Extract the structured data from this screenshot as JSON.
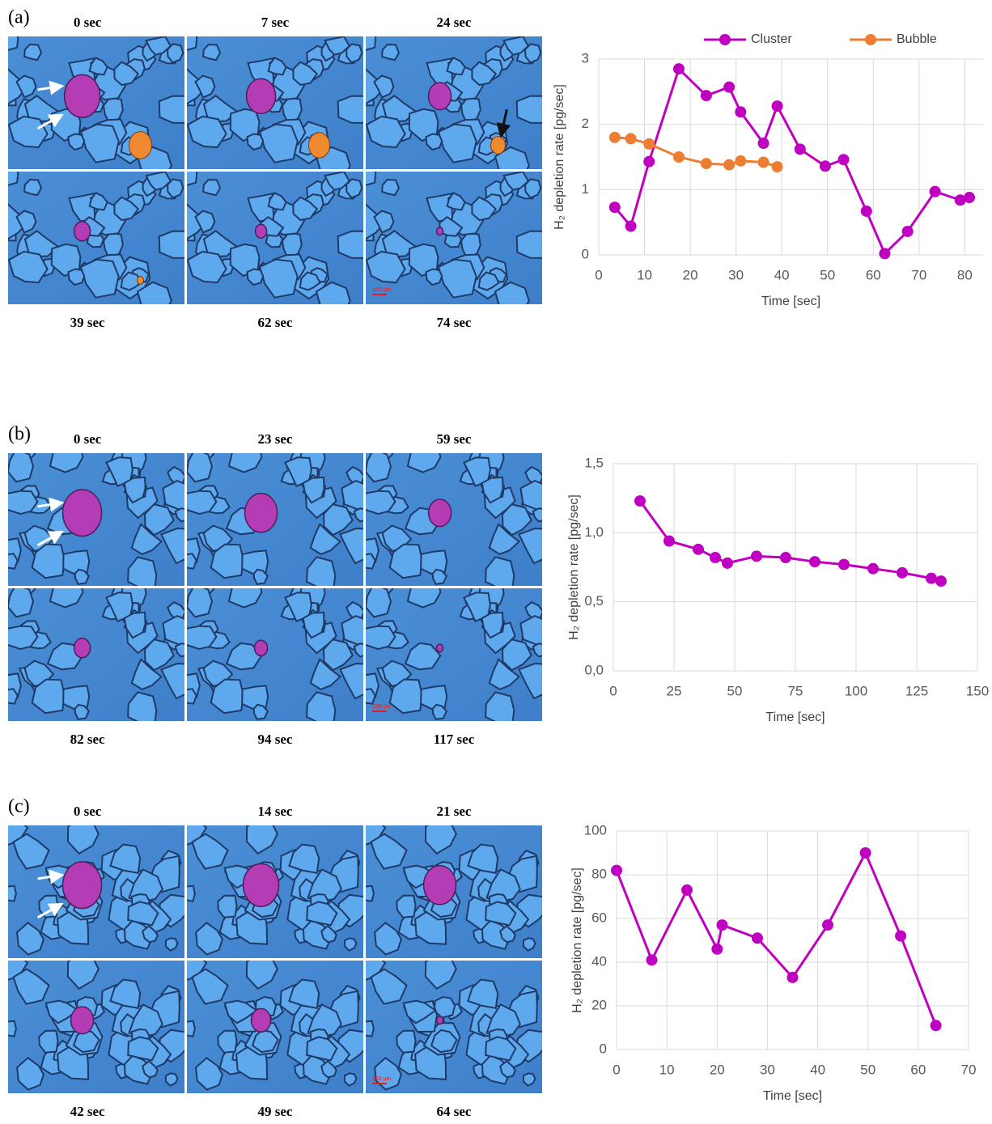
{
  "panels": [
    {
      "label": "(a)",
      "times": [
        "0 sec",
        "7 sec",
        "24 sec",
        "39 sec",
        "62 sec",
        "74 sec"
      ],
      "scale_bar": "100 µm"
    },
    {
      "label": "(b)",
      "times": [
        "0 sec",
        "23 sec",
        "59 sec",
        "82 sec",
        "94 sec",
        "117 sec"
      ],
      "scale_bar": "100 µm"
    },
    {
      "label": "(c)",
      "times": [
        "0 sec",
        "14 sec",
        "21 sec",
        "42 sec",
        "49 sec",
        "64 sec"
      ],
      "scale_bar": "100 µm"
    }
  ],
  "chart_data": [
    {
      "type": "line",
      "x_label": "Time [sec]",
      "y_label": "H₂ depletion rate [pg/sec]",
      "xlim": [
        0,
        84
      ],
      "xticks": [
        0,
        10,
        20,
        30,
        40,
        50,
        60,
        70,
        80
      ],
      "ylim": [
        0,
        3
      ],
      "yticks": [
        0,
        1,
        2,
        3
      ],
      "grid": true,
      "legend": "top",
      "series": [
        {
          "name": "Cluster",
          "color": "#c000c0",
          "x": [
            3.5,
            7,
            11,
            17.5,
            23.5,
            28.5,
            31,
            36,
            39,
            44,
            49.5,
            53.5,
            58.5,
            62.5,
            67.5,
            73.5,
            79,
            81
          ],
          "values": [
            0.73,
            0.44,
            1.43,
            2.85,
            2.44,
            2.57,
            2.19,
            1.71,
            2.28,
            1.62,
            1.36,
            1.46,
            0.67,
            0.02,
            0.36,
            0.97,
            0.84,
            0.88
          ]
        },
        {
          "name": "Bubble",
          "color": "#ed7d31",
          "x": [
            3.5,
            7,
            11,
            17.5,
            23.5,
            28.5,
            31,
            36,
            39
          ],
          "values": [
            1.8,
            1.78,
            1.7,
            1.5,
            1.4,
            1.38,
            1.44,
            1.42,
            1.35
          ]
        }
      ]
    },
    {
      "type": "line",
      "x_label": "Time [sec]",
      "y_label": "H₂ depletion rate [pg/sec]",
      "xlim": [
        0,
        150
      ],
      "xticks": [
        0,
        25,
        50,
        75,
        100,
        125,
        150
      ],
      "ylim": [
        0,
        1.5
      ],
      "yticks": [
        {
          "value": 0,
          "label": "0,0"
        },
        {
          "value": 0.5,
          "label": "0,5"
        },
        {
          "value": 1,
          "label": "1,0"
        },
        {
          "value": 1.5,
          "label": "1,5"
        }
      ],
      "grid": true,
      "series": [
        {
          "color": "#c000c0",
          "x": [
            11,
            23,
            35,
            42,
            47,
            59,
            71,
            83,
            95,
            107,
            119,
            131,
            135
          ],
          "values": [
            1.23,
            0.94,
            0.88,
            0.82,
            0.78,
            0.83,
            0.82,
            0.79,
            0.77,
            0.74,
            0.71,
            0.67,
            0.65
          ]
        }
      ]
    },
    {
      "type": "line",
      "x_label": "Time [sec]",
      "y_label": "H₂ depletion rate [pg/sec]",
      "xlim": [
        0,
        70
      ],
      "xticks": [
        0,
        10,
        20,
        30,
        40,
        50,
        60,
        70
      ],
      "ylim": [
        0,
        100
      ],
      "yticks": [
        0,
        20,
        40,
        60,
        80,
        100
      ],
      "grid": true,
      "series": [
        {
          "color": "#c000c0",
          "x": [
            0,
            7,
            14,
            20,
            21,
            28,
            35,
            42,
            49.5,
            56.5,
            63.5
          ],
          "values": [
            82,
            41,
            73,
            46,
            57,
            51,
            33,
            57,
            90,
            52,
            11
          ]
        }
      ]
    }
  ]
}
